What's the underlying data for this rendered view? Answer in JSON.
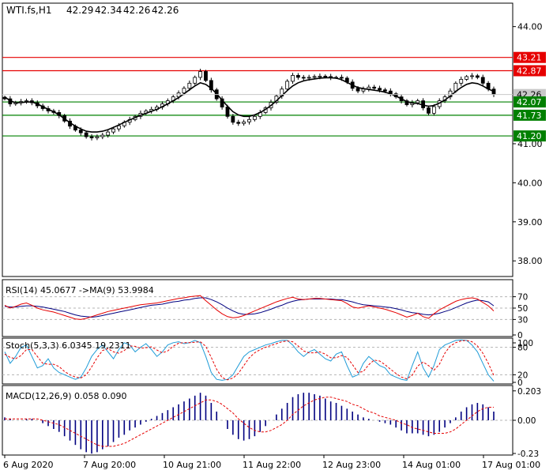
{
  "colors": {
    "background": "#ffffff",
    "frame": "#000000",
    "price": "#000000",
    "resistance": "#e60000",
    "support": "#008000",
    "current_tag": "#c8c8c8",
    "rsi_line": "#e60000",
    "rsi_ma": "#000080",
    "stoch_main": "#1e9bd7",
    "stoch_signal": "#e60000",
    "macd_hist": "#000080",
    "macd_signal": "#e60000",
    "level_dash": "#b4b4b4"
  },
  "chart_data": [
    {
      "type": "candlestick",
      "title": "WTI.fs,H1",
      "ohlc": [
        "42.29",
        "42.34",
        "42.26",
        "42.26"
      ],
      "ylim": [
        37.6,
        44.6
      ],
      "y_ticks": [
        "44.00",
        "41.00",
        "40.00",
        "39.00",
        "38.00"
      ],
      "x_ticks": [
        "6 Aug 2020",
        "7 Aug 20:00",
        "10 Aug 21:00",
        "11 Aug 22:00",
        "12 Aug 23:00",
        "14 Aug 01:00",
        "17 Aug 01:00"
      ],
      "current_price": "42.26",
      "moving_average": "on",
      "resistance_levels": [
        {
          "value": 43.21,
          "label": "43.21"
        },
        {
          "value": 42.87,
          "label": "42.87"
        }
      ],
      "support_levels": [
        {
          "value": 42.07,
          "label": "42.07"
        },
        {
          "value": 41.73,
          "label": "41.73"
        },
        {
          "value": 41.2,
          "label": "41.20"
        }
      ],
      "close": [
        42.15,
        42.02,
        42.05,
        42.08,
        42.1,
        42.05,
        41.97,
        41.9,
        41.84,
        41.8,
        41.72,
        41.58,
        41.45,
        41.35,
        41.28,
        41.18,
        41.15,
        41.18,
        41.22,
        41.3,
        41.38,
        41.46,
        41.55,
        41.62,
        41.7,
        41.78,
        41.84,
        41.88,
        41.94,
        42.02,
        42.1,
        42.2,
        42.3,
        42.42,
        42.55,
        42.7,
        42.85,
        42.62,
        42.38,
        42.15,
        41.94,
        41.7,
        41.55,
        41.52,
        41.56,
        41.62,
        41.7,
        41.8,
        41.92,
        42.06,
        42.22,
        42.4,
        42.6,
        42.75,
        42.7,
        42.68,
        42.7,
        42.72,
        42.73,
        42.72,
        42.7,
        42.7,
        42.68,
        42.58,
        42.42,
        42.35,
        42.4,
        42.45,
        42.42,
        42.38,
        42.35,
        42.28,
        42.2,
        42.1,
        42.0,
        42.05,
        42.1,
        41.92,
        41.78,
        41.95,
        42.1,
        42.2,
        42.35,
        42.55,
        42.65,
        42.72,
        42.74,
        42.7,
        42.55,
        42.4,
        42.26
      ],
      "ma_values": [
        42.2,
        42.1,
        42.05,
        42.05,
        42.07,
        42.07,
        42.02,
        41.95,
        41.88,
        41.82,
        41.74,
        41.64,
        41.54,
        41.45,
        41.38,
        41.32,
        41.3,
        41.3,
        41.32,
        41.36,
        41.42,
        41.48,
        41.55,
        41.61,
        41.67,
        41.73,
        41.78,
        41.83,
        41.88,
        41.95,
        42.02,
        42.1,
        42.18,
        42.28,
        42.38,
        42.48,
        42.56,
        42.52,
        42.42,
        42.28,
        42.12,
        41.96,
        41.82,
        41.74,
        41.7,
        41.7,
        41.74,
        41.8,
        41.88,
        41.98,
        42.1,
        42.23,
        42.36,
        42.48,
        42.56,
        42.61,
        42.64,
        42.66,
        42.68,
        42.69,
        42.69,
        42.68,
        42.64,
        42.57,
        42.5,
        42.44,
        42.41,
        42.39,
        42.37,
        42.35,
        42.32,
        42.28,
        42.22,
        42.15,
        42.08,
        42.04,
        42.03,
        41.99,
        41.96,
        41.98,
        42.04,
        42.12,
        42.22,
        42.34,
        42.44,
        42.52,
        42.56,
        42.54,
        42.48,
        42.4,
        42.34
      ]
    },
    {
      "type": "line",
      "title": "RSI(14) 45.0677  ->MA(9) 53.9984",
      "ylim": [
        0,
        100
      ],
      "y_ticks": [
        "70",
        "50",
        "30",
        "0"
      ],
      "levels": [
        70,
        50,
        30
      ],
      "series": [
        {
          "values": [
            55,
            50,
            53,
            57,
            59,
            55,
            50,
            47,
            45,
            43,
            40,
            37,
            34,
            31,
            30,
            32,
            35,
            38,
            41,
            44,
            46,
            48,
            50,
            52,
            54,
            56,
            57,
            58,
            59,
            61,
            63,
            65,
            67,
            68,
            70,
            71,
            72,
            63,
            55,
            47,
            40,
            35,
            33,
            34,
            37,
            41,
            45,
            49,
            53,
            57,
            61,
            64,
            67,
            69,
            66,
            65,
            66,
            67,
            67,
            66,
            65,
            64,
            63,
            58,
            52,
            50,
            52,
            54,
            52,
            50,
            48,
            45,
            42,
            38,
            34,
            37,
            41,
            35,
            32,
            40,
            47,
            52,
            57,
            62,
            65,
            67,
            68,
            66,
            60,
            54,
            45
          ]
        },
        {
          "values": [
            53,
            52,
            52,
            53,
            54,
            54,
            53,
            52,
            50,
            48,
            46,
            44,
            41,
            38,
            36,
            35,
            34,
            35,
            37,
            39,
            41,
            43,
            45,
            47,
            49,
            51,
            53,
            55,
            56,
            57,
            59,
            61,
            62,
            64,
            65,
            67,
            68,
            68,
            65,
            61,
            56,
            50,
            45,
            41,
            39,
            39,
            40,
            42,
            45,
            48,
            52,
            55,
            59,
            62,
            64,
            65,
            66,
            66,
            66,
            66,
            66,
            65,
            65,
            63,
            61,
            58,
            56,
            55,
            54,
            53,
            52,
            51,
            49,
            47,
            44,
            42,
            41,
            39,
            38,
            39,
            41,
            44,
            47,
            51,
            55,
            59,
            62,
            64,
            63,
            61,
            54
          ]
        }
      ]
    },
    {
      "type": "line",
      "title": "Stoch(5,3,3) 6.0345 19.2311",
      "ylim": [
        0,
        100
      ],
      "y_ticks": [
        "100",
        "80",
        "20",
        "0"
      ],
      "levels": [
        80,
        20
      ],
      "series": [
        {
          "values": [
            70,
            45,
            60,
            80,
            85,
            60,
            35,
            40,
            55,
            35,
            25,
            20,
            15,
            10,
            15,
            35,
            60,
            75,
            85,
            70,
            55,
            75,
            90,
            85,
            70,
            80,
            88,
            75,
            60,
            70,
            85,
            90,
            92,
            88,
            90,
            95,
            90,
            60,
            25,
            10,
            8,
            10,
            20,
            40,
            60,
            70,
            75,
            80,
            85,
            88,
            92,
            95,
            95,
            85,
            70,
            60,
            70,
            75,
            65,
            55,
            50,
            65,
            70,
            40,
            15,
            20,
            45,
            60,
            50,
            40,
            35,
            20,
            15,
            10,
            8,
            40,
            70,
            35,
            15,
            40,
            75,
            85,
            90,
            95,
            96,
            95,
            85,
            70,
            45,
            20,
            6
          ]
        },
        {
          "values": [
            65,
            58,
            55,
            62,
            75,
            75,
            60,
            45,
            43,
            43,
            38,
            27,
            20,
            15,
            13,
            20,
            37,
            57,
            73,
            77,
            70,
            67,
            73,
            83,
            82,
            78,
            79,
            81,
            74,
            68,
            72,
            82,
            89,
            90,
            90,
            91,
            92,
            82,
            58,
            32,
            14,
            9,
            13,
            23,
            40,
            57,
            68,
            75,
            80,
            84,
            88,
            92,
            94,
            92,
            83,
            72,
            68,
            68,
            70,
            65,
            57,
            57,
            62,
            58,
            42,
            25,
            27,
            42,
            52,
            50,
            42,
            32,
            23,
            15,
            11,
            19,
            39,
            48,
            40,
            30,
            43,
            67,
            83,
            90,
            94,
            95,
            92,
            83,
            67,
            45,
            19
          ]
        }
      ]
    },
    {
      "type": "bar+line",
      "title": "MACD(12,26,9) 0.058 0.090",
      "ylim": [
        -0.24,
        0.24
      ],
      "y_ticks": [
        "0.203",
        "0.00",
        "-0.23"
      ],
      "series": [
        {
          "values": [
            0.02,
            0.01,
            0.0,
            0.0,
            0.01,
            0.01,
            0.0,
            -0.02,
            -0.04,
            -0.06,
            -0.08,
            -0.11,
            -0.14,
            -0.17,
            -0.2,
            -0.22,
            -0.23,
            -0.22,
            -0.2,
            -0.18,
            -0.15,
            -0.12,
            -0.1,
            -0.07,
            -0.05,
            -0.03,
            -0.01,
            0.01,
            0.03,
            0.05,
            0.07,
            0.09,
            0.11,
            0.13,
            0.15,
            0.17,
            0.19,
            0.17,
            0.12,
            0.06,
            0.0,
            -0.06,
            -0.1,
            -0.13,
            -0.14,
            -0.13,
            -0.11,
            -0.08,
            -0.04,
            0.0,
            0.04,
            0.08,
            0.12,
            0.16,
            0.18,
            0.19,
            0.19,
            0.18,
            0.17,
            0.15,
            0.13,
            0.12,
            0.1,
            0.08,
            0.06,
            0.04,
            0.02,
            0.01,
            0.0,
            -0.01,
            -0.02,
            -0.03,
            -0.05,
            -0.07,
            -0.09,
            -0.09,
            -0.09,
            -0.1,
            -0.11,
            -0.1,
            -0.08,
            -0.05,
            -0.02,
            0.02,
            0.06,
            0.09,
            0.11,
            0.12,
            0.11,
            0.09,
            0.06
          ]
        },
        {
          "values": [
            0.01,
            0.01,
            0.01,
            0.01,
            0.01,
            0.01,
            0.01,
            0.0,
            -0.01,
            -0.02,
            -0.03,
            -0.05,
            -0.07,
            -0.09,
            -0.11,
            -0.13,
            -0.15,
            -0.17,
            -0.18,
            -0.18,
            -0.18,
            -0.17,
            -0.16,
            -0.14,
            -0.12,
            -0.1,
            -0.08,
            -0.06,
            -0.04,
            -0.02,
            0.0,
            0.02,
            0.04,
            0.06,
            0.08,
            0.1,
            0.12,
            0.14,
            0.14,
            0.13,
            0.11,
            0.08,
            0.05,
            0.01,
            -0.02,
            -0.05,
            -0.07,
            -0.08,
            -0.08,
            -0.07,
            -0.05,
            -0.03,
            0.0,
            0.04,
            0.07,
            0.1,
            0.12,
            0.14,
            0.15,
            0.16,
            0.16,
            0.15,
            0.14,
            0.13,
            0.11,
            0.1,
            0.08,
            0.06,
            0.05,
            0.03,
            0.02,
            0.01,
            0.0,
            -0.02,
            -0.03,
            -0.05,
            -0.06,
            -0.07,
            -0.08,
            -0.09,
            -0.09,
            -0.09,
            -0.08,
            -0.06,
            -0.03,
            0.0,
            0.03,
            0.06,
            0.08,
            0.09,
            0.09
          ]
        }
      ]
    }
  ]
}
